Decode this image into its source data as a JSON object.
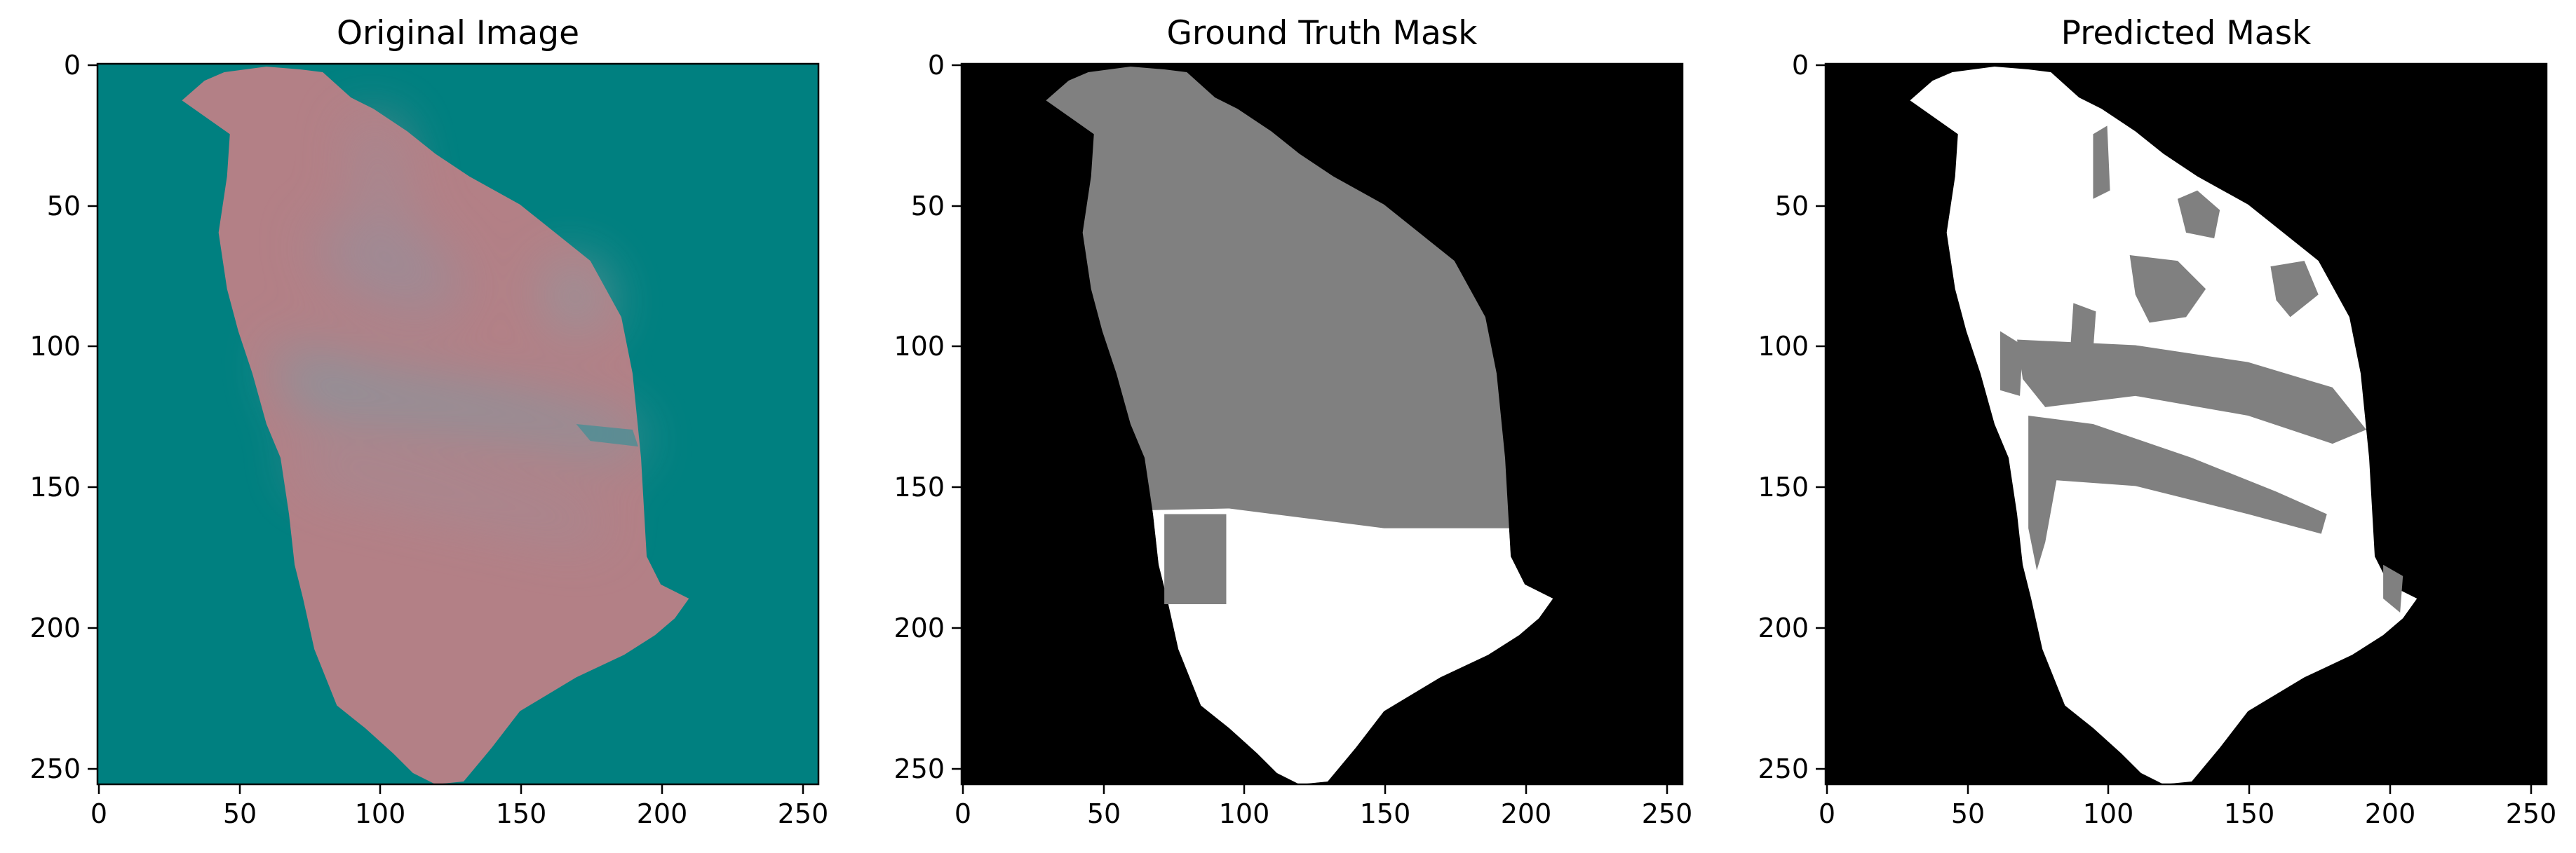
{
  "panels": [
    {
      "title": "Original Image",
      "x_ticks": [
        "0",
        "50",
        "100",
        "150",
        "200",
        "250"
      ],
      "y_ticks": [
        "0",
        "50",
        "100",
        "150",
        "200",
        "250"
      ],
      "background": "#008080",
      "fill": "#b38086"
    },
    {
      "title": "Ground Truth Mask",
      "x_ticks": [
        "0",
        "50",
        "100",
        "150",
        "200",
        "250"
      ],
      "y_ticks": [
        "0",
        "50",
        "100",
        "150",
        "200",
        "250"
      ],
      "background": "#000000",
      "fill": "#808080"
    },
    {
      "title": "Predicted Mask",
      "x_ticks": [
        "0",
        "50",
        "100",
        "150",
        "200",
        "250"
      ],
      "y_ticks": [
        "0",
        "50",
        "100",
        "150",
        "200",
        "250"
      ],
      "background": "#000000",
      "fill": "#ffffff"
    }
  ],
  "colors": {
    "tissue_pink": "#b38086",
    "tissue_band": "#7f9aa2",
    "class_gray": "#808080",
    "class_white": "#ffffff"
  }
}
